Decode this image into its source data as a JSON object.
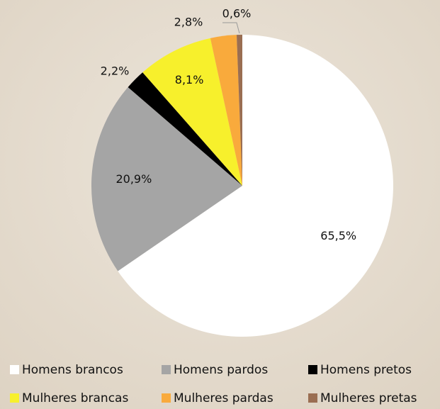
{
  "chart_data": {
    "type": "pie",
    "categories": [
      "Homens brancos",
      "Homens pardos",
      "Homens pretos",
      "Mulheres brancas",
      "Mulheres pardas",
      "Mulheres pretas"
    ],
    "values": [
      65.5,
      20.9,
      2.2,
      8.1,
      2.8,
      0.6
    ],
    "value_labels": [
      "65,5%",
      "20,9%",
      "2,2%",
      "8,1%",
      "2,8%",
      "0,6%"
    ],
    "colors": [
      "#ffffff",
      "#a5a5a5",
      "#000000",
      "#f7f02c",
      "#f9aa3c",
      "#9a6e52"
    ]
  }
}
